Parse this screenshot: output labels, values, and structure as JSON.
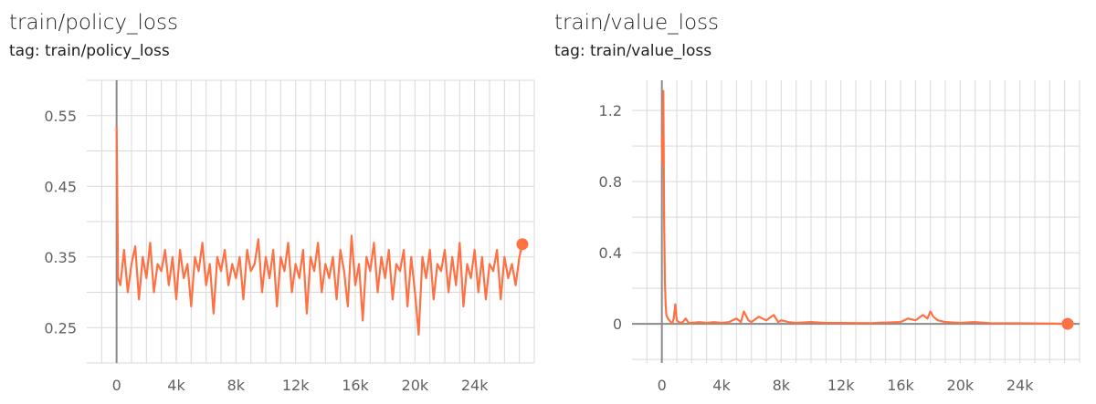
{
  "charts": [
    {
      "title": "train/policy_loss",
      "tag": "tag: train/policy_loss"
    },
    {
      "title": "train/value_loss",
      "tag": "tag: train/value_loss"
    }
  ],
  "colors": {
    "series": "#ff7043",
    "grid": "#d9d9d9",
    "zero_axis": "#8a8a8a",
    "text": "#212121"
  },
  "chart_data": [
    {
      "type": "line",
      "title": "train/policy_loss",
      "xlabel": "",
      "ylabel": "",
      "xlim": [
        -2000,
        28000
      ],
      "ylim": [
        0.2,
        0.6
      ],
      "x_ticks": [
        0,
        4000,
        8000,
        12000,
        16000,
        20000,
        24000
      ],
      "x_tick_labels": [
        "0",
        "4k",
        "8k",
        "12k",
        "16k",
        "20k",
        "24k"
      ],
      "y_ticks": [
        0.25,
        0.35,
        0.45,
        0.55
      ],
      "y_tick_labels": [
        "0.25",
        "0.35",
        "0.45",
        "0.55"
      ],
      "grid": true,
      "series": [
        {
          "x": [
            0,
            100,
            250,
            500,
            750,
            1000,
            1250,
            1500,
            1750,
            2000,
            2250,
            2500,
            2750,
            3000,
            3250,
            3500,
            3750,
            4000,
            4250,
            4500,
            4750,
            5000,
            5250,
            5500,
            5750,
            6000,
            6250,
            6500,
            6750,
            7000,
            7250,
            7500,
            7750,
            8000,
            8250,
            8500,
            8750,
            9000,
            9250,
            9500,
            9750,
            10000,
            10250,
            10500,
            10750,
            11000,
            11250,
            11500,
            11750,
            12000,
            12250,
            12500,
            12750,
            13000,
            13250,
            13500,
            13750,
            14000,
            14250,
            14500,
            14750,
            15000,
            15250,
            15500,
            15750,
            16000,
            16250,
            16500,
            16750,
            17000,
            17250,
            17500,
            17750,
            18000,
            18250,
            18500,
            18750,
            19000,
            19250,
            19500,
            19750,
            20000,
            20250,
            20500,
            20750,
            21000,
            21250,
            21500,
            21750,
            22000,
            22250,
            22500,
            22750,
            23000,
            23250,
            23500,
            23750,
            24000,
            24250,
            24500,
            24750,
            25000,
            25250,
            25500,
            25750,
            26000,
            26250,
            26500,
            26750,
            27000,
            27200
          ],
          "y": [
            0.535,
            0.32,
            0.31,
            0.36,
            0.3,
            0.34,
            0.365,
            0.29,
            0.35,
            0.32,
            0.37,
            0.3,
            0.34,
            0.33,
            0.36,
            0.31,
            0.35,
            0.29,
            0.36,
            0.32,
            0.34,
            0.28,
            0.35,
            0.33,
            0.37,
            0.31,
            0.34,
            0.27,
            0.35,
            0.33,
            0.36,
            0.31,
            0.34,
            0.32,
            0.35,
            0.29,
            0.36,
            0.33,
            0.34,
            0.375,
            0.3,
            0.35,
            0.32,
            0.36,
            0.28,
            0.35,
            0.33,
            0.37,
            0.3,
            0.34,
            0.32,
            0.36,
            0.27,
            0.35,
            0.33,
            0.37,
            0.3,
            0.34,
            0.32,
            0.35,
            0.29,
            0.36,
            0.33,
            0.28,
            0.38,
            0.31,
            0.34,
            0.26,
            0.35,
            0.33,
            0.37,
            0.3,
            0.35,
            0.32,
            0.36,
            0.29,
            0.34,
            0.33,
            0.36,
            0.28,
            0.35,
            0.3,
            0.24,
            0.35,
            0.32,
            0.36,
            0.29,
            0.34,
            0.33,
            0.36,
            0.3,
            0.35,
            0.31,
            0.37,
            0.28,
            0.34,
            0.32,
            0.36,
            0.3,
            0.35,
            0.29,
            0.34,
            0.33,
            0.36,
            0.29,
            0.35,
            0.32,
            0.34,
            0.31,
            0.35,
            0.368
          ]
        }
      ]
    },
    {
      "type": "line",
      "title": "train/value_loss",
      "xlabel": "",
      "ylabel": "",
      "xlim": [
        -2000,
        28000
      ],
      "ylim": [
        -0.22,
        1.37
      ],
      "x_ticks": [
        0,
        4000,
        8000,
        12000,
        16000,
        20000,
        24000
      ],
      "x_tick_labels": [
        "0",
        "4k",
        "8k",
        "12k",
        "16k",
        "20k",
        "24k"
      ],
      "y_ticks": [
        0,
        0.4,
        0.8,
        1.2
      ],
      "y_tick_labels": [
        "0",
        "0.4",
        "0.8",
        "1.2"
      ],
      "grid": true,
      "series": [
        {
          "x": [
            0,
            50,
            100,
            150,
            200,
            250,
            300,
            400,
            500,
            600,
            700,
            800,
            900,
            1000,
            1200,
            1400,
            1600,
            1800,
            2000,
            2500,
            3000,
            3500,
            4000,
            4500,
            5000,
            5300,
            5500,
            5800,
            6000,
            6500,
            7000,
            7500,
            7800,
            8000,
            8500,
            9000,
            10000,
            11000,
            12000,
            14000,
            16000,
            16500,
            17000,
            17500,
            17800,
            18000,
            18200,
            18500,
            19000,
            20000,
            21000,
            22000,
            24000,
            26000,
            27200
          ],
          "y": [
            1.05,
            0.9,
            1.31,
            0.6,
            0.25,
            0.12,
            0.05,
            0.03,
            0.02,
            0.01,
            0.005,
            0.03,
            0.11,
            0.02,
            0.005,
            0.01,
            0.03,
            0.005,
            0.005,
            0.01,
            0.005,
            0.01,
            0.005,
            0.01,
            0.03,
            0.01,
            0.07,
            0.02,
            0.01,
            0.04,
            0.02,
            0.05,
            0.01,
            0.02,
            0.01,
            0.005,
            0.01,
            0.005,
            0.005,
            0.004,
            0.01,
            0.03,
            0.02,
            0.05,
            0.03,
            0.07,
            0.04,
            0.02,
            0.01,
            0.005,
            0.01,
            0.004,
            0.003,
            0.002,
            0.0
          ]
        }
      ]
    }
  ]
}
